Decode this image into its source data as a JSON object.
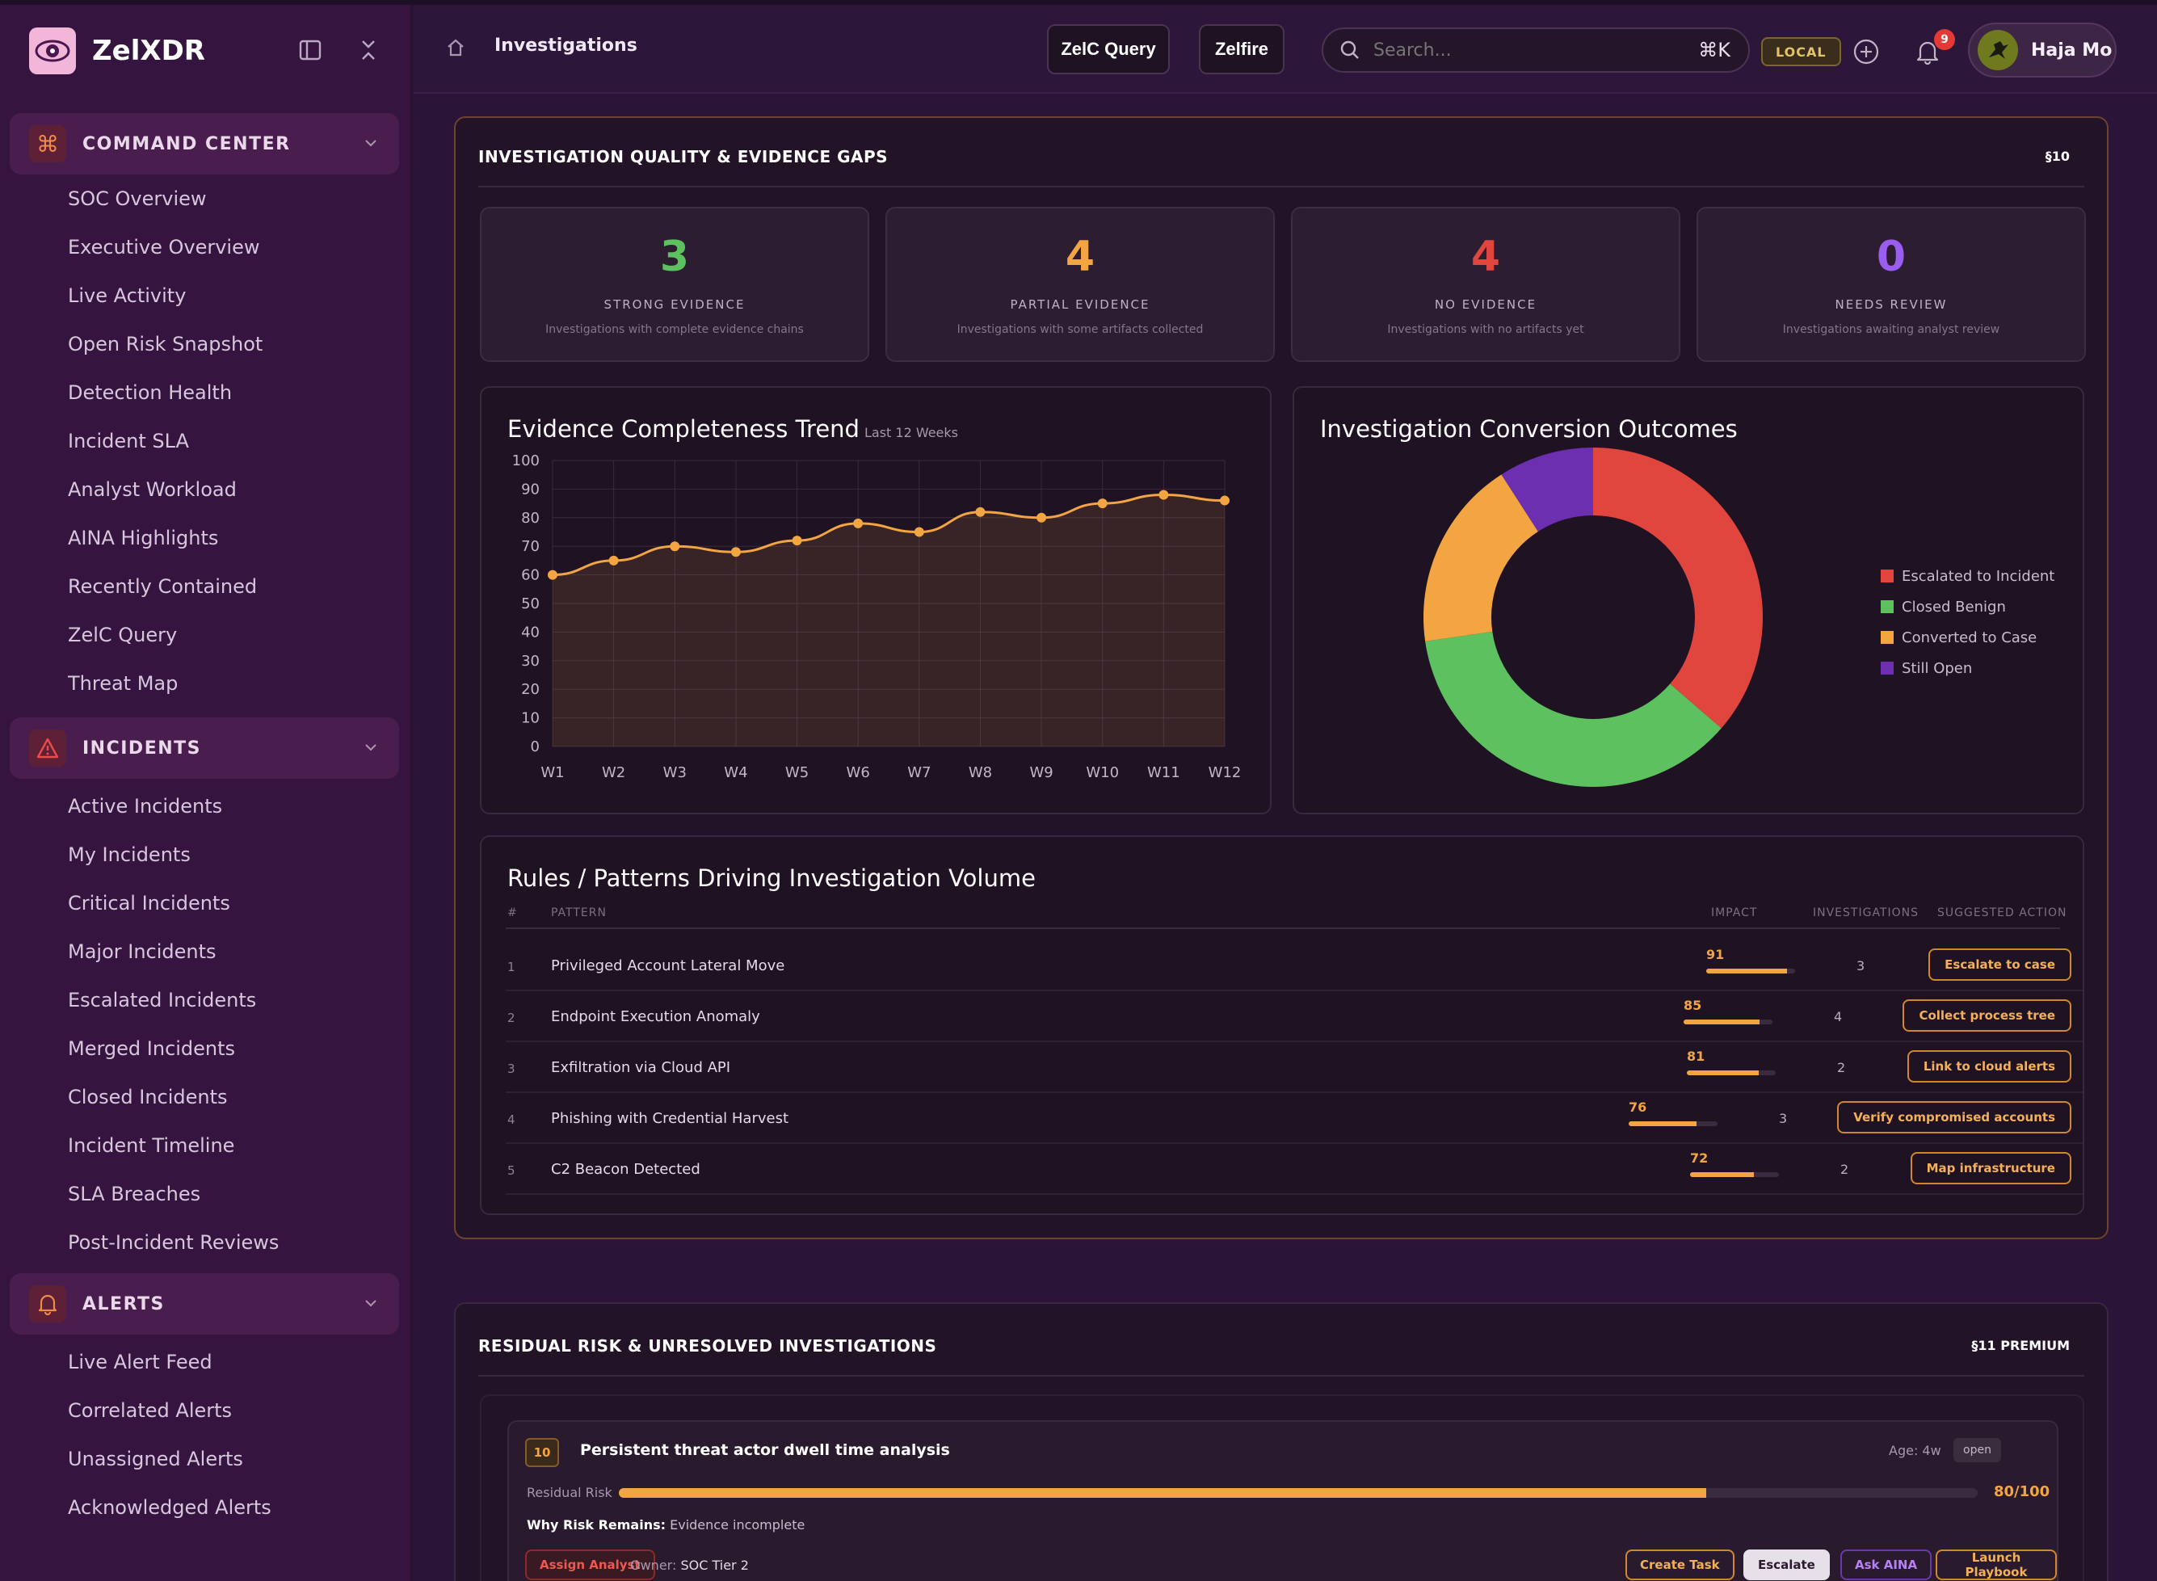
{
  "app": {
    "name": "ZelXDR"
  },
  "sidebar": {
    "sections": [
      {
        "label": "COMMAND CENTER",
        "items": [
          "SOC Overview",
          "Executive Overview",
          "Live Activity",
          "Open Risk Snapshot",
          "Detection Health",
          "Incident SLA",
          "Analyst Workload",
          "AINA Highlights",
          "Recently Contained",
          "ZelC Query",
          "Threat Map"
        ]
      },
      {
        "label": "INCIDENTS",
        "items": [
          "Active Incidents",
          "My Incidents",
          "Critical Incidents",
          "Major Incidents",
          "Escalated Incidents",
          "Merged Incidents",
          "Closed Incidents",
          "Incident Timeline",
          "SLA Breaches",
          "Post-Incident Reviews"
        ]
      },
      {
        "label": "ALERTS",
        "items": [
          "Live Alert Feed",
          "Correlated Alerts",
          "Unassigned Alerts",
          "Acknowledged Alerts"
        ]
      }
    ]
  },
  "header": {
    "title": "Investigations",
    "btn_query": "ZelC Query",
    "btn_zelfire": "Zelfire",
    "search_placeholder": "Search...",
    "search_kbd": "⌘K",
    "local_badge": "LOCAL",
    "notif_count": "9",
    "user_name": "Haja Mo"
  },
  "quality": {
    "title": "INVESTIGATION QUALITY & EVIDENCE GAPS",
    "tag": "§10",
    "stats": [
      {
        "value": "3",
        "label": "STRONG EVIDENCE",
        "sub": "Investigations with complete evidence chains",
        "color": "#5dc15f"
      },
      {
        "value": "4",
        "label": "PARTIAL EVIDENCE",
        "sub": "Investigations with some artifacts collected",
        "color": "#f2a541"
      },
      {
        "value": "4",
        "label": "NO EVIDENCE",
        "sub": "Investigations with no artifacts yet",
        "color": "#e0453e"
      },
      {
        "value": "0",
        "label": "NEEDS REVIEW",
        "sub": "Investigations awaiting analyst review",
        "color": "#9b5cf0"
      }
    ],
    "trend": {
      "title": "Evidence Completeness Trend",
      "subtitle": "Last 12 Weeks"
    },
    "donut": {
      "title": "Investigation Conversion Outcomes"
    },
    "rules": {
      "title": "Rules / Patterns Driving Investigation Volume",
      "headers": {
        "num": "#",
        "pattern": "PATTERN",
        "impact": "IMPACT",
        "investigations": "INVESTIGATIONS",
        "action": "SUGGESTED ACTION"
      },
      "rows": [
        {
          "num": "1",
          "pattern": "Privileged Account Lateral Move",
          "impact": 91,
          "investigations": "3",
          "action": "Escalate to case"
        },
        {
          "num": "2",
          "pattern": "Endpoint Execution Anomaly",
          "impact": 85,
          "investigations": "4",
          "action": "Collect process tree"
        },
        {
          "num": "3",
          "pattern": "Exfiltration via Cloud API",
          "impact": 81,
          "investigations": "2",
          "action": "Link to cloud alerts"
        },
        {
          "num": "4",
          "pattern": "Phishing with Credential Harvest",
          "impact": 76,
          "investigations": "3",
          "action": "Verify compromised accounts"
        },
        {
          "num": "5",
          "pattern": "C2 Beacon Detected",
          "impact": 72,
          "investigations": "2",
          "action": "Map infrastructure"
        }
      ]
    }
  },
  "residual": {
    "title": "RESIDUAL RISK & UNRESOLVED INVESTIGATIONS",
    "tag": "§11 PREMIUM",
    "item": {
      "score_badge": "10",
      "title": "Persistent threat actor dwell time analysis",
      "age": "Age: 4w",
      "status": "open",
      "risk_label": "Residual Risk",
      "risk_value": 80,
      "risk_text": "80/100",
      "why_label": "Why Risk Remains:",
      "why_value": "Evidence incomplete",
      "assign_btn": "Assign Analyst",
      "owner_label": "Owner:",
      "owner_value": "SOC Tier 2",
      "actions": [
        "Create Task",
        "Escalate",
        "Ask AINA",
        "Launch Playbook"
      ]
    }
  },
  "chart_data": [
    {
      "type": "area",
      "title": "Evidence Completeness Trend",
      "subtitle": "Last 12 Weeks",
      "x": [
        "W1",
        "W2",
        "W3",
        "W4",
        "W5",
        "W6",
        "W7",
        "W8",
        "W9",
        "W10",
        "W11",
        "W12"
      ],
      "y": [
        60,
        65,
        70,
        68,
        72,
        78,
        75,
        82,
        80,
        85,
        88,
        86
      ],
      "ylim": [
        0,
        100
      ],
      "yticks": [
        0,
        10,
        20,
        30,
        40,
        50,
        60,
        70,
        80,
        90,
        100
      ],
      "grid": true,
      "color": "#f2a541"
    },
    {
      "type": "pie",
      "title": "Investigation Conversion Outcomes",
      "donut": true,
      "labels": [
        "Escalated to Incident",
        "Closed Benign",
        "Converted to Case",
        "Still Open"
      ],
      "values": [
        4,
        4,
        2,
        1
      ],
      "colors": [
        "#e0453e",
        "#5dc15f",
        "#f2a541",
        "#6b2fb0"
      ],
      "legend": "right"
    }
  ]
}
